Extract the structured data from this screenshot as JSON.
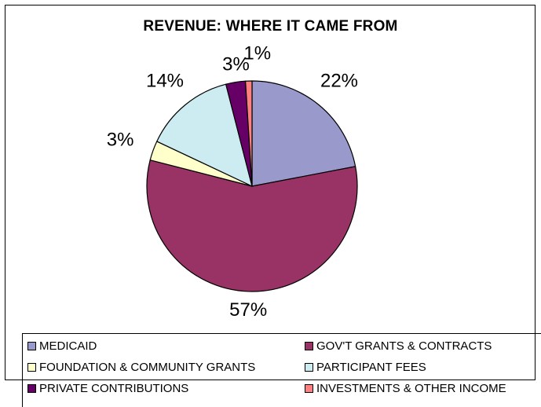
{
  "chart_data": {
    "type": "pie",
    "title": "REVENUE: WHERE IT CAME FROM",
    "categories": [
      "MEDICAID",
      "GOV'T GRANTS & CONTRACTS",
      "FOUNDATION & COMMUNITY GRANTS",
      "PARTICIPANT FEES",
      "PRIVATE CONTRIBUTIONS",
      "INVESTMENTS & OTHER INCOME"
    ],
    "values": [
      22,
      57,
      3,
      14,
      3,
      1
    ],
    "labels": [
      "22%",
      "57%",
      "3%",
      "14%",
      "3%",
      "1%"
    ],
    "colors": [
      "#9999cc",
      "#993366",
      "#ffffcc",
      "#ccecf2",
      "#660066",
      "#ff8080"
    ],
    "legend_position": "bottom"
  }
}
